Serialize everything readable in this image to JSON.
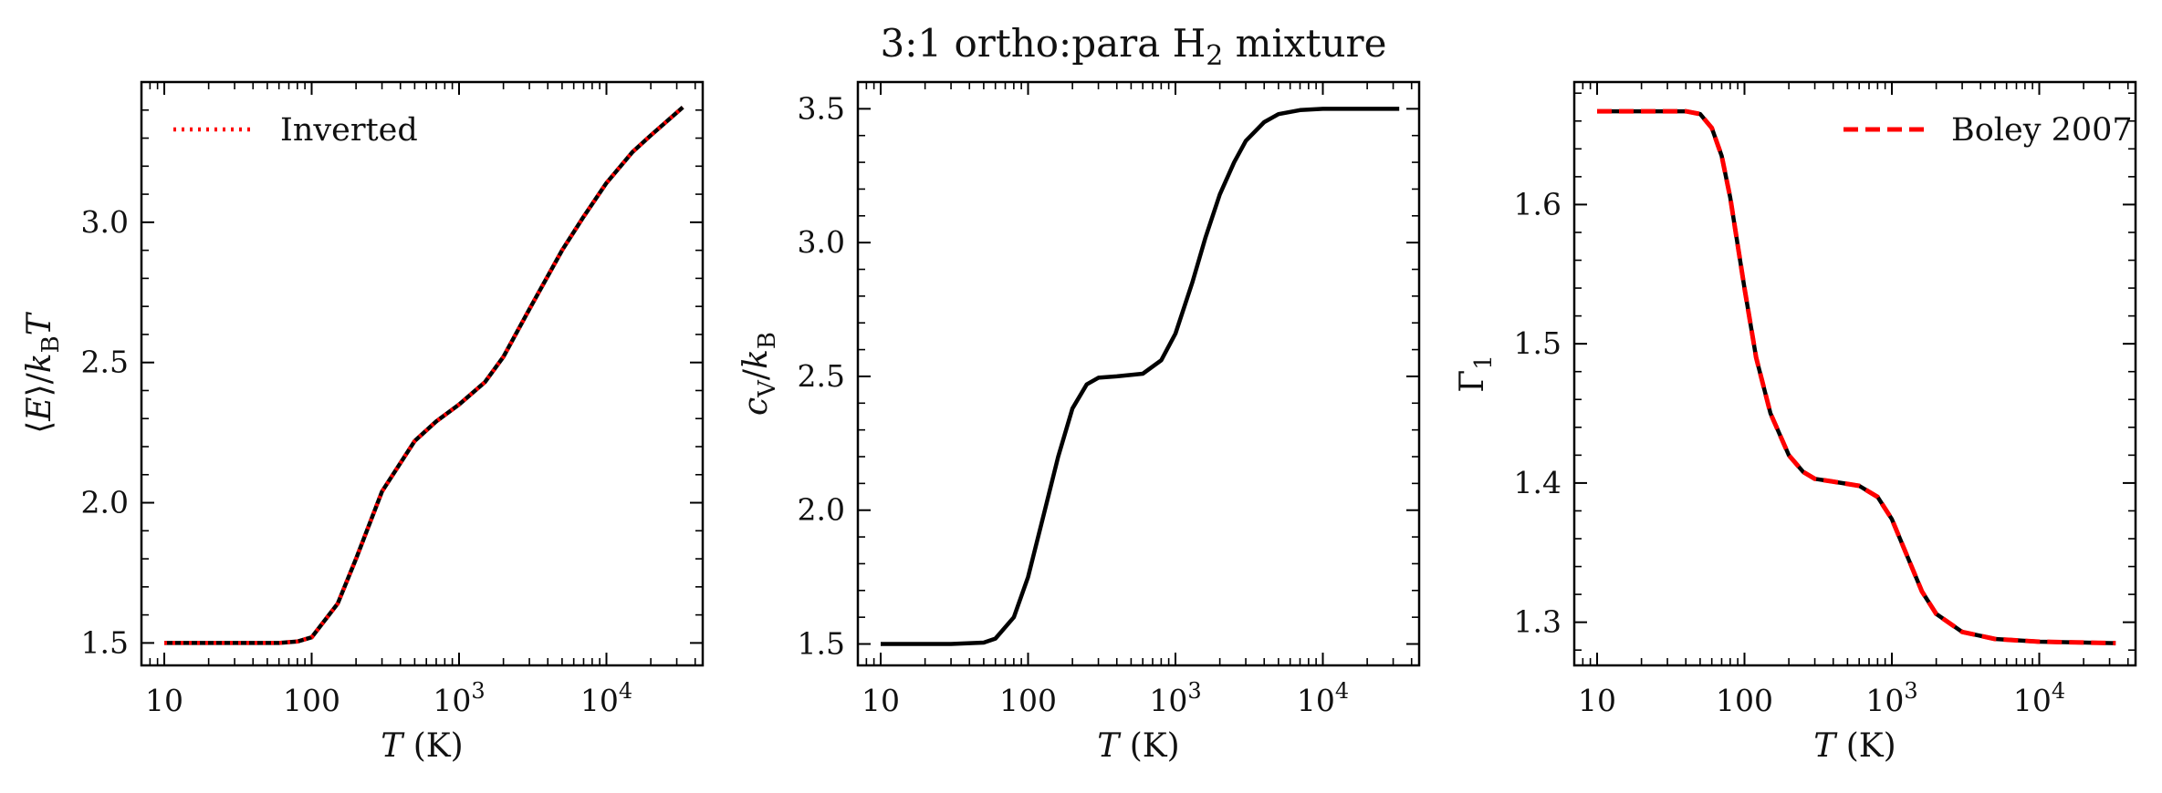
{
  "suptitle": "3:1 ortho:para H₂ mixture",
  "chart_data": [
    {
      "type": "line",
      "xscale": "log",
      "xlim": [
        7,
        45000
      ],
      "ylim": [
        1.42,
        3.5
      ],
      "xticks": [
        10,
        100,
        1000,
        10000
      ],
      "xtick_labels": [
        "10",
        "100",
        "10³",
        "10⁴"
      ],
      "yticks": [
        1.5,
        2.0,
        2.5,
        3.0
      ],
      "ytick_labels": [
        "1.5",
        "2.0",
        "2.5",
        "3.0"
      ],
      "xlabel": "T (K)",
      "ylabel": "⟨E⟩/k_B T",
      "legend": {
        "placement": "upper-left",
        "entries": [
          "Inverted"
        ]
      },
      "x": [
        10,
        30,
        60,
        80,
        100,
        150,
        200,
        300,
        500,
        700,
        1000,
        1500,
        2000,
        3000,
        5000,
        7000,
        10000,
        15000,
        20000,
        33000
      ],
      "series": [
        {
          "name": "",
          "color": "#000000",
          "style": "solid",
          "values": [
            1.5,
            1.5,
            1.5,
            1.505,
            1.52,
            1.64,
            1.8,
            2.04,
            2.22,
            2.29,
            2.35,
            2.43,
            2.52,
            2.69,
            2.9,
            3.02,
            3.14,
            3.25,
            3.31,
            3.41
          ]
        },
        {
          "name": "Inverted",
          "color": "#ff0000",
          "style": "dotted",
          "values": [
            1.5,
            1.5,
            1.5,
            1.505,
            1.52,
            1.64,
            1.8,
            2.04,
            2.22,
            2.29,
            2.35,
            2.43,
            2.52,
            2.69,
            2.9,
            3.02,
            3.14,
            3.25,
            3.31,
            3.41
          ]
        }
      ]
    },
    {
      "type": "line",
      "xscale": "log",
      "xlim": [
        7,
        45000
      ],
      "ylim": [
        1.42,
        3.6
      ],
      "xticks": [
        10,
        100,
        1000,
        10000
      ],
      "xtick_labels": [
        "10",
        "100",
        "10³",
        "10⁴"
      ],
      "yticks": [
        1.5,
        2.0,
        2.5,
        3.0,
        3.5
      ],
      "ytick_labels": [
        "1.5",
        "2.0",
        "2.5",
        "3.0",
        "3.5"
      ],
      "xlabel": "T (K)",
      "ylabel": "c_V/k_B",
      "x": [
        10,
        30,
        50,
        60,
        80,
        100,
        130,
        160,
        200,
        250,
        300,
        400,
        600,
        800,
        1000,
        1300,
        1600,
        2000,
        2500,
        3000,
        4000,
        5000,
        7000,
        10000,
        15000,
        33000
      ],
      "series": [
        {
          "name": "",
          "color": "#000000",
          "style": "solid",
          "values": [
            1.5,
            1.5,
            1.505,
            1.52,
            1.6,
            1.75,
            2.0,
            2.2,
            2.38,
            2.47,
            2.495,
            2.5,
            2.51,
            2.56,
            2.66,
            2.85,
            3.02,
            3.18,
            3.3,
            3.38,
            3.45,
            3.48,
            3.495,
            3.5,
            3.5,
            3.5
          ]
        }
      ]
    },
    {
      "type": "line",
      "xscale": "log",
      "xlim": [
        7,
        45000
      ],
      "ylim": [
        1.269,
        1.688
      ],
      "xticks": [
        10,
        100,
        1000,
        10000
      ],
      "xtick_labels": [
        "10",
        "100",
        "10³",
        "10⁴"
      ],
      "yticks": [
        1.3,
        1.4,
        1.5,
        1.6
      ],
      "ytick_labels": [
        "1.3",
        "1.4",
        "1.5",
        "1.6"
      ],
      "xlabel": "T (K)",
      "ylabel": "Γ₁",
      "legend": {
        "placement": "upper-right",
        "entries": [
          "Boley 2007"
        ]
      },
      "x": [
        10,
        30,
        40,
        50,
        60,
        70,
        80,
        100,
        120,
        150,
        200,
        250,
        300,
        400,
        600,
        800,
        1000,
        1300,
        1600,
        2000,
        3000,
        5000,
        10000,
        33000
      ],
      "series": [
        {
          "name": "",
          "color": "#000000",
          "style": "solid",
          "values": [
            1.667,
            1.667,
            1.667,
            1.665,
            1.655,
            1.635,
            1.605,
            1.54,
            1.49,
            1.45,
            1.42,
            1.408,
            1.403,
            1.401,
            1.398,
            1.39,
            1.374,
            1.345,
            1.322,
            1.306,
            1.293,
            1.288,
            1.286,
            1.285
          ]
        },
        {
          "name": "Boley 2007",
          "color": "#ff0000",
          "style": "dashed",
          "values": [
            1.667,
            1.667,
            1.667,
            1.665,
            1.655,
            1.635,
            1.605,
            1.54,
            1.49,
            1.45,
            1.42,
            1.408,
            1.403,
            1.401,
            1.398,
            1.39,
            1.374,
            1.345,
            1.322,
            1.306,
            1.293,
            1.288,
            1.286,
            1.285
          ]
        }
      ]
    }
  ]
}
